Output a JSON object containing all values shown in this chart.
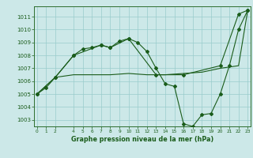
{
  "xlabel": "Graphe pression niveau de la mer (hPa)",
  "bg_color": "#cce8e8",
  "grid_color": "#99cccc",
  "line_color": "#1a5c1a",
  "spine_color": "#2d6e2d",
  "ylim": [
    1002.5,
    1011.8
  ],
  "xlim": [
    -0.3,
    23.3
  ],
  "yticks": [
    1003,
    1004,
    1005,
    1006,
    1007,
    1008,
    1009,
    1010,
    1011
  ],
  "xticks": [
    0,
    1,
    2,
    4,
    5,
    6,
    7,
    8,
    9,
    10,
    11,
    12,
    13,
    14,
    15,
    16,
    17,
    18,
    19,
    20,
    21,
    22,
    23
  ],
  "series1": {
    "x": [
      0,
      1,
      2,
      4,
      5,
      6,
      7,
      8,
      9,
      10,
      11,
      12,
      13,
      14,
      15,
      16,
      17,
      18,
      19,
      20,
      21,
      22,
      23
    ],
    "y": [
      1005.0,
      1005.5,
      1006.3,
      1008.0,
      1008.5,
      1008.6,
      1008.8,
      1008.6,
      1009.1,
      1009.3,
      1009.0,
      1008.3,
      1007.0,
      1005.8,
      1005.6,
      1002.7,
      1002.5,
      1003.4,
      1003.5,
      1005.0,
      1007.2,
      1010.0,
      1011.5
    ]
  },
  "series2": {
    "x": [
      0,
      2,
      4,
      7,
      8,
      10,
      13,
      16,
      20,
      22,
      23
    ],
    "y": [
      1005.0,
      1006.3,
      1008.0,
      1008.8,
      1008.6,
      1009.3,
      1006.5,
      1006.5,
      1007.2,
      1011.2,
      1011.5
    ]
  },
  "series3": {
    "x": [
      0,
      2,
      4,
      6,
      8,
      10,
      12,
      14,
      16,
      18,
      20,
      22,
      23
    ],
    "y": [
      1005.0,
      1006.3,
      1006.5,
      1006.5,
      1006.5,
      1006.6,
      1006.5,
      1006.5,
      1006.6,
      1006.7,
      1007.0,
      1007.2,
      1011.5
    ]
  }
}
